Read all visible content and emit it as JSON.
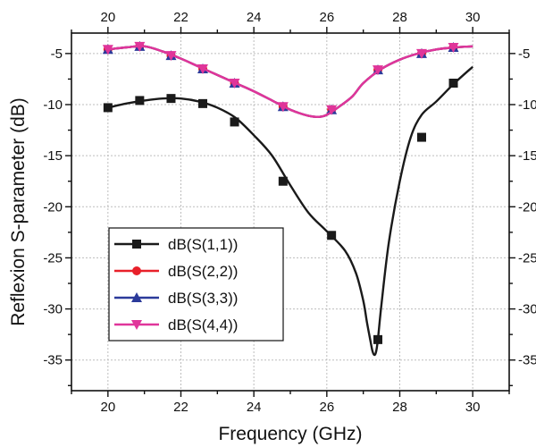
{
  "chart_data": {
    "type": "line",
    "xlabel": "Frequency (GHz)",
    "ylabel": "Reflexion S-parameter (dB)",
    "xlim": [
      19,
      31
    ],
    "ylim": [
      -38,
      -3
    ],
    "xticks": [
      20,
      22,
      24,
      26,
      28,
      30
    ],
    "yticks": [
      -5,
      -10,
      -15,
      -20,
      -25,
      -30,
      -35
    ],
    "xtick_labels": [
      "20",
      "22",
      "24",
      "26",
      "28",
      "30"
    ],
    "ytick_labels": [
      "-5",
      "-10",
      "-15",
      "-20",
      "-25",
      "-30",
      "-35"
    ],
    "grid": true,
    "legend_position": "lower-left",
    "series": [
      {
        "name": "dB(S(1,1))",
        "color": "#1a1a1a",
        "marker": "square",
        "curve_x": [
          20,
          20.5,
          21,
          21.5,
          22,
          22.5,
          23,
          23.5,
          24,
          24.5,
          25,
          25.5,
          26,
          26.5,
          26.8,
          27.0,
          27.1,
          27.2,
          27.25,
          27.3,
          27.35,
          27.4,
          27.5,
          27.7,
          28.0,
          28.3,
          28.6,
          29.0,
          29.5,
          30.0
        ],
        "curve_y": [
          -10.3,
          -9.9,
          -9.6,
          -9.4,
          -9.4,
          -9.7,
          -10.3,
          -11.3,
          -13.0,
          -15.0,
          -17.9,
          -20.6,
          -22.4,
          -24.3,
          -26.5,
          -29.2,
          -31.3,
          -33.2,
          -34.1,
          -34.5,
          -34.2,
          -33.0,
          -29.5,
          -23.5,
          -17.5,
          -13.2,
          -11.0,
          -9.7,
          -7.9,
          -6.3
        ],
        "markers_x": [
          20,
          20.87,
          21.73,
          22.6,
          23.47,
          24.8,
          26.13,
          27.4,
          28.6,
          29.47
        ],
        "markers_y": [
          -10.3,
          -9.6,
          -9.4,
          -9.9,
          -11.7,
          -17.5,
          -22.8,
          -33.0,
          -13.2,
          -7.9
        ]
      },
      {
        "name": "dB(S(2,2))",
        "color": "#e8202a",
        "marker": "circle",
        "curve_x": [
          20,
          20.5,
          21,
          21.5,
          22,
          22.5,
          23,
          23.5,
          24,
          24.5,
          25,
          25.5,
          25.8,
          26.0,
          26.3,
          26.7,
          27.0,
          27.5,
          28.0,
          28.5,
          29.0,
          29.5,
          30.0
        ],
        "curve_y": [
          -4.6,
          -4.4,
          -4.3,
          -4.8,
          -5.5,
          -6.3,
          -7.1,
          -7.9,
          -8.7,
          -9.6,
          -10.5,
          -11.1,
          -11.2,
          -11.0,
          -10.3,
          -9.2,
          -7.9,
          -6.5,
          -5.6,
          -5.0,
          -4.6,
          -4.4,
          -4.3
        ],
        "markers_x": [
          20,
          20.87,
          21.73,
          22.6,
          23.47,
          24.8,
          26.13,
          27.4,
          28.6,
          29.47
        ],
        "markers_y": [
          -4.6,
          -4.3,
          -5.2,
          -6.5,
          -7.9,
          -10.2,
          -10.5,
          -6.6,
          -5.0,
          -4.4
        ]
      },
      {
        "name": "dB(S(3,3))",
        "color": "#2b3a9a",
        "marker": "triangle-up",
        "curve_x": [
          20,
          20.5,
          21,
          21.5,
          22,
          22.5,
          23,
          23.5,
          24,
          24.5,
          25,
          25.5,
          25.8,
          26.0,
          26.3,
          26.7,
          27.0,
          27.5,
          28.0,
          28.5,
          29.0,
          29.5,
          30.0
        ],
        "curve_y": [
          -4.6,
          -4.4,
          -4.3,
          -4.8,
          -5.5,
          -6.3,
          -7.1,
          -7.9,
          -8.7,
          -9.6,
          -10.5,
          -11.1,
          -11.2,
          -11.0,
          -10.3,
          -9.2,
          -7.9,
          -6.5,
          -5.6,
          -5.0,
          -4.6,
          -4.4,
          -4.3
        ],
        "markers_x": [
          20,
          20.87,
          21.73,
          22.6,
          23.47,
          24.8,
          26.13,
          27.4,
          28.6,
          29.47
        ],
        "markers_y": [
          -4.6,
          -4.3,
          -5.2,
          -6.5,
          -7.9,
          -10.2,
          -10.5,
          -6.6,
          -5.0,
          -4.4
        ]
      },
      {
        "name": "dB(S(4,4))",
        "color": "#e0359a",
        "marker": "triangle-down",
        "curve_x": [
          20,
          20.5,
          21,
          21.5,
          22,
          22.5,
          23,
          23.5,
          24,
          24.5,
          25,
          25.5,
          25.8,
          26.0,
          26.3,
          26.7,
          27.0,
          27.5,
          28.0,
          28.5,
          29.0,
          29.5,
          30.0
        ],
        "curve_y": [
          -4.6,
          -4.4,
          -4.3,
          -4.8,
          -5.5,
          -6.3,
          -7.1,
          -7.9,
          -8.7,
          -9.6,
          -10.5,
          -11.1,
          -11.2,
          -11.0,
          -10.3,
          -9.2,
          -7.9,
          -6.5,
          -5.6,
          -5.0,
          -4.6,
          -4.4,
          -4.3
        ],
        "markers_x": [
          20,
          20.87,
          21.73,
          22.6,
          23.47,
          24.8,
          26.13,
          27.4,
          28.6,
          29.47
        ],
        "markers_y": [
          -4.6,
          -4.3,
          -5.2,
          -6.5,
          -7.9,
          -10.2,
          -10.5,
          -6.6,
          -5.0,
          -4.4
        ]
      }
    ]
  }
}
